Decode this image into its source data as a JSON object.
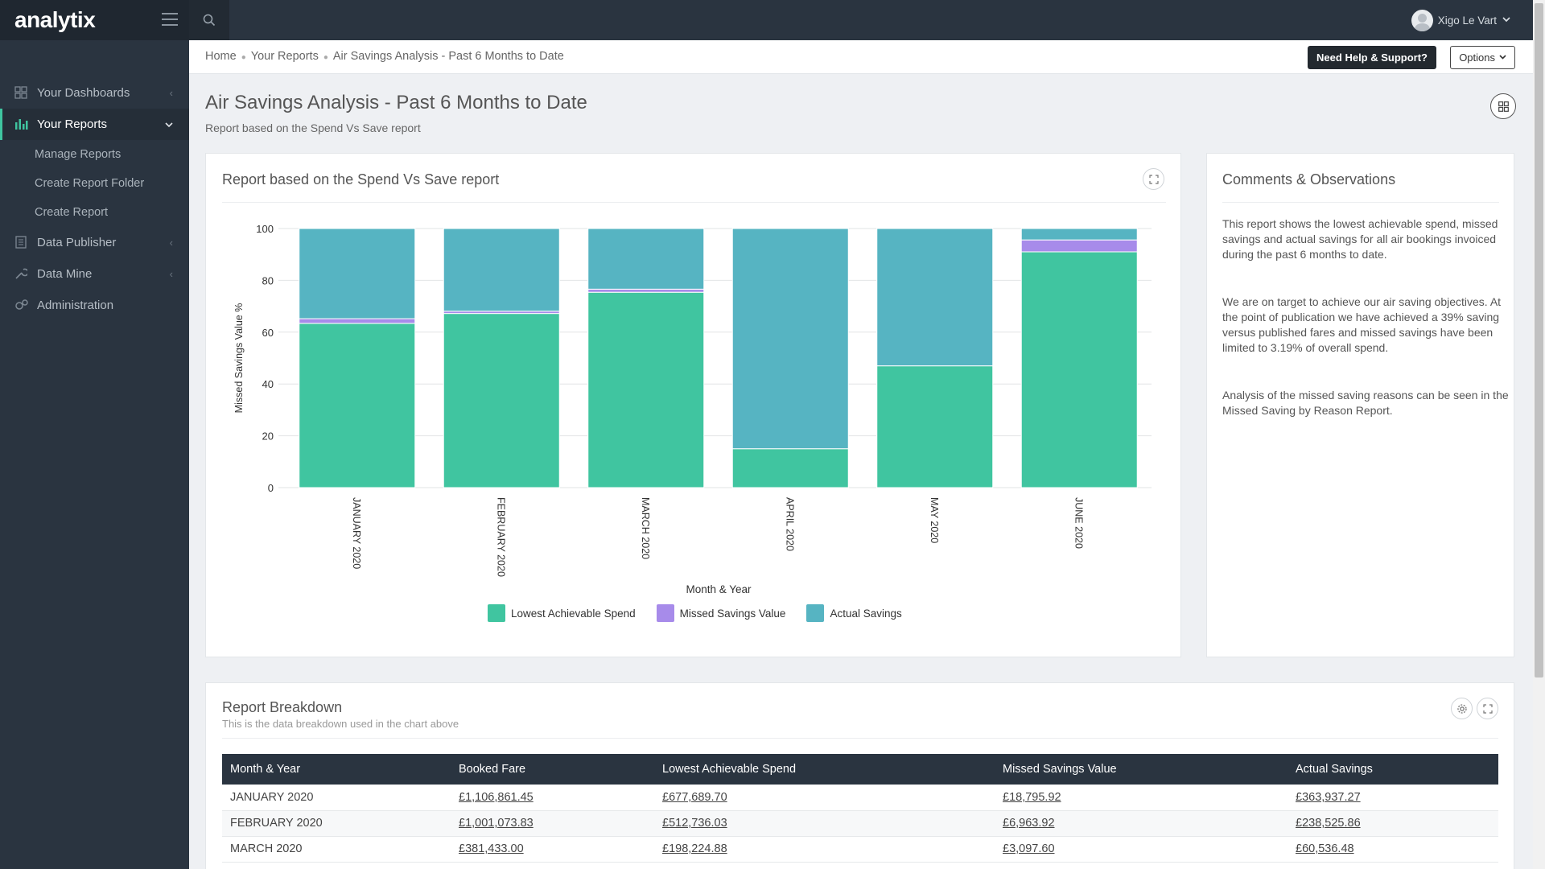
{
  "app": {
    "brand": "analytix"
  },
  "sidebar": {
    "items": [
      {
        "label": "Your Dashboards",
        "icon": "grid-icon",
        "expanded": false
      },
      {
        "label": "Your Reports",
        "icon": "bar-chart-icon",
        "expanded": true
      },
      {
        "label": "Data Publisher",
        "icon": "book-icon",
        "expanded": false
      },
      {
        "label": "Data Mine",
        "icon": "wrench-icon",
        "expanded": false
      },
      {
        "label": "Administration",
        "icon": "cogs-icon",
        "expanded": false
      }
    ],
    "subitems": [
      "Manage Reports",
      "Create Report Folder",
      "Create Report"
    ]
  },
  "topbar": {
    "user_name": "Xigo Le Vart"
  },
  "breadcrumb": [
    "Home",
    "Your Reports",
    "Air Savings Analysis - Past 6 Months to Date"
  ],
  "header": {
    "help_label": "Need Help & Support?",
    "options_label": "Options",
    "title": "Air Savings Analysis - Past 6 Months to Date",
    "subtitle": "Report based on the Spend Vs Save report"
  },
  "chart_panel": {
    "title": "Report based on the Spend Vs Save report"
  },
  "chart_data": {
    "type": "bar",
    "stacked": true,
    "categories": [
      "JANUARY 2020",
      "FEBRUARY 2020",
      "MARCH 2020",
      "APRIL 2020",
      "MAY 2020",
      "JUNE 2020"
    ],
    "series": [
      {
        "name": "Lowest Achievable Spend",
        "color": "#40c5a0",
        "values": [
          63.4,
          67.2,
          75.4,
          15.0,
          47.0,
          91.0
        ]
      },
      {
        "name": "Missed Savings Value",
        "color": "#a78bea",
        "values": [
          1.8,
          0.9,
          1.2,
          0.0,
          0.0,
          4.6
        ]
      },
      {
        "name": "Actual Savings",
        "color": "#56b4c2",
        "values": [
          34.8,
          31.9,
          23.4,
          85.0,
          53.0,
          4.4
        ]
      }
    ],
    "xlabel": "Month & Year",
    "ylabel": "Missed Savings Value %",
    "ylim": [
      0,
      100
    ],
    "yticks": [
      0,
      20,
      40,
      60,
      80,
      100
    ],
    "grid": true,
    "legend": "bottom"
  },
  "comments_panel": {
    "title": "Comments & Observations",
    "paragraphs": [
      "This report shows the lowest achievable spend, missed savings and actual savings for all air bookings invoiced during the past 6 months to date.",
      "We are on target to achieve our air saving objectives. At the point of publication we have achieved a 39% saving versus published fares and missed savings have been limited to 3.19% of overall spend.",
      "Analysis of the missed saving reasons can be seen in the Missed Saving by Reason Report."
    ]
  },
  "breakdown_panel": {
    "title": "Report Breakdown",
    "subtitle": "This is the data breakdown used in the chart above",
    "columns": [
      "Month & Year",
      "Booked Fare",
      "Lowest Achievable Spend",
      "Missed Savings Value",
      "Actual Savings"
    ],
    "rows": [
      [
        "JANUARY 2020",
        "£1,106,861.45",
        "£677,689.70",
        "£18,795.92",
        "£363,937.27"
      ],
      [
        "FEBRUARY 2020",
        "£1,001,073.83",
        "£512,736.03",
        "£6,963.92",
        "£238,525.86"
      ],
      [
        "MARCH 2020",
        "£381,433.00",
        "£198,224.88",
        "£3,097.60",
        "£60,536.48"
      ]
    ]
  }
}
